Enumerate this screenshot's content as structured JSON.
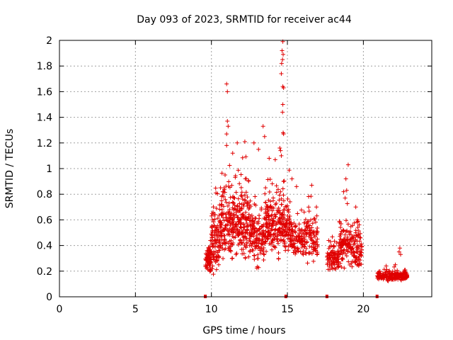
{
  "chart_data": {
    "type": "scatter",
    "title": "Day 093 of 2023, SRMTID for receiver ac44",
    "xlabel": "GPS time / hours",
    "ylabel": "SRMTID / TECUs",
    "xlim": [
      0,
      24.5
    ],
    "ylim": [
      0,
      2
    ],
    "xticks": [
      0,
      5,
      10,
      15,
      20
    ],
    "xtick_labels": [
      "0",
      "5",
      "10",
      "15",
      "20"
    ],
    "yticks": [
      0,
      0.2,
      0.4,
      0.6,
      0.8,
      1,
      1.2,
      1.4,
      1.6,
      1.8,
      2
    ],
    "ytick_labels": [
      "0",
      "0.2",
      "0.4",
      "0.6",
      "0.8",
      "1",
      "1.2",
      "1.4",
      "1.6",
      "1.8",
      "2"
    ],
    "grid": true,
    "marker": "+",
    "color": "#e00000",
    "series": [
      {
        "name": "SRMTID",
        "clusters": [
          {
            "x_range": [
              9.6,
              10.0
            ],
            "y_base": 0.28,
            "y_spread": 0.12,
            "count": 70
          },
          {
            "x_range": [
              10.0,
              10.5
            ],
            "y_base": 0.4,
            "y_spread": 0.3,
            "count": 90
          },
          {
            "x_range": [
              10.5,
              11.5
            ],
            "y_base": 0.55,
            "y_spread": 0.35,
            "count": 160
          },
          {
            "x_range": [
              11.5,
              12.5
            ],
            "y_base": 0.55,
            "y_spread": 0.35,
            "count": 160
          },
          {
            "x_range": [
              12.5,
              13.5
            ],
            "y_base": 0.45,
            "y_spread": 0.3,
            "count": 140
          },
          {
            "x_range": [
              13.5,
              14.5
            ],
            "y_base": 0.55,
            "y_spread": 0.3,
            "count": 160
          },
          {
            "x_range": [
              14.5,
              15.2
            ],
            "y_base": 0.55,
            "y_spread": 0.3,
            "count": 110
          },
          {
            "x_range": [
              15.2,
              16.2
            ],
            "y_base": 0.45,
            "y_spread": 0.18,
            "count": 110
          },
          {
            "x_range": [
              16.2,
              17.0
            ],
            "y_base": 0.45,
            "y_spread": 0.25,
            "count": 90
          },
          {
            "x_range": [
              17.6,
              18.4
            ],
            "y_base": 0.3,
            "y_spread": 0.12,
            "count": 90
          },
          {
            "x_range": [
              18.4,
              19.2
            ],
            "y_base": 0.4,
            "y_spread": 0.22,
            "count": 100
          },
          {
            "x_range": [
              19.2,
              19.9
            ],
            "y_base": 0.35,
            "y_spread": 0.2,
            "count": 90
          },
          {
            "x_range": [
              20.9,
              22.9
            ],
            "y_base": 0.16,
            "y_spread": 0.05,
            "count": 190
          }
        ],
        "peaks": [
          {
            "x": 11.0,
            "y": 1.66
          },
          {
            "x": 11.05,
            "y": 1.6
          },
          {
            "x": 11.05,
            "y": 1.37
          },
          {
            "x": 11.1,
            "y": 1.33
          },
          {
            "x": 11.0,
            "y": 1.27
          },
          {
            "x": 11.0,
            "y": 1.18
          },
          {
            "x": 14.7,
            "y": 1.99
          },
          {
            "x": 14.65,
            "y": 1.92
          },
          {
            "x": 14.72,
            "y": 1.89
          },
          {
            "x": 14.68,
            "y": 1.85
          },
          {
            "x": 14.62,
            "y": 1.82
          },
          {
            "x": 14.6,
            "y": 1.74
          },
          {
            "x": 14.7,
            "y": 1.64
          },
          {
            "x": 14.75,
            "y": 1.63
          },
          {
            "x": 14.7,
            "y": 1.5
          },
          {
            "x": 14.68,
            "y": 1.44
          },
          {
            "x": 14.72,
            "y": 1.28
          },
          {
            "x": 14.75,
            "y": 1.27
          },
          {
            "x": 14.5,
            "y": 1.16
          },
          {
            "x": 14.55,
            "y": 1.14
          },
          {
            "x": 14.6,
            "y": 1.1
          },
          {
            "x": 13.4,
            "y": 1.33
          },
          {
            "x": 13.5,
            "y": 1.25
          },
          {
            "x": 12.2,
            "y": 1.21
          },
          {
            "x": 12.8,
            "y": 1.2
          },
          {
            "x": 11.7,
            "y": 1.2
          },
          {
            "x": 11.4,
            "y": 1.12
          },
          {
            "x": 13.1,
            "y": 1.15
          },
          {
            "x": 13.8,
            "y": 1.08
          },
          {
            "x": 14.2,
            "y": 1.07
          },
          {
            "x": 19.0,
            "y": 1.03
          },
          {
            "x": 18.85,
            "y": 0.92
          },
          {
            "x": 18.9,
            "y": 0.83
          },
          {
            "x": 18.7,
            "y": 0.82
          },
          {
            "x": 18.8,
            "y": 0.77
          },
          {
            "x": 19.5,
            "y": 0.7
          },
          {
            "x": 19.6,
            "y": 0.6
          },
          {
            "x": 16.6,
            "y": 0.87
          },
          {
            "x": 15.6,
            "y": 0.86
          },
          {
            "x": 15.3,
            "y": 0.92
          },
          {
            "x": 10.3,
            "y": 0.81
          },
          {
            "x": 10.6,
            "y": 0.85
          },
          {
            "x": 10.9,
            "y": 0.95
          },
          {
            "x": 22.4,
            "y": 0.38
          },
          {
            "x": 22.35,
            "y": 0.35
          },
          {
            "x": 22.45,
            "y": 0.33
          },
          {
            "x": 21.5,
            "y": 0.24
          },
          {
            "x": 22.1,
            "y": 0.25
          }
        ],
        "zero_markers_x": [
          9.6,
          14.9,
          17.6,
          20.9
        ]
      }
    ]
  }
}
